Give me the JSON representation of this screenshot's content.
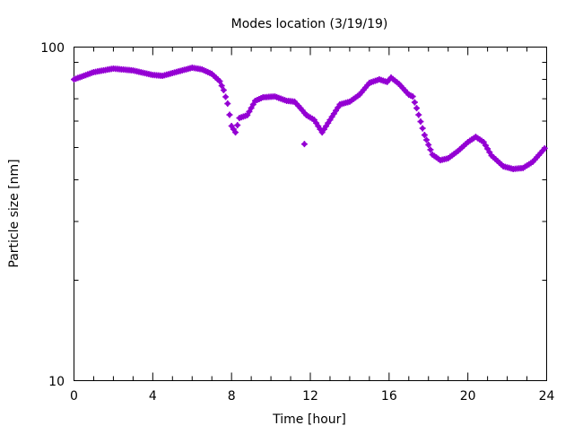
{
  "chart_data": {
    "type": "scatter",
    "title": "Modes location (3/19/19)",
    "xlabel": "Time [hour]",
    "ylabel": "Particle size [nm]",
    "xlim": [
      0,
      24
    ],
    "ylim": [
      10,
      100
    ],
    "yscale": "log",
    "xticks": [
      0,
      4,
      8,
      12,
      16,
      20,
      24
    ],
    "xtick_labels": [
      "0",
      "4",
      "8",
      "12",
      "16",
      "20",
      "24"
    ],
    "yticks": [
      10,
      100
    ],
    "ytick_labels": [
      "10",
      "100"
    ],
    "grid": false,
    "legend": "none",
    "series": [
      {
        "name": "mode",
        "color": "#9400d3",
        "x": [
          0,
          1,
          2,
          3,
          4,
          4.5,
          5,
          6,
          6.5,
          7,
          7.4,
          7.6,
          7.8,
          8,
          8.2,
          8.4,
          8.8,
          9.2,
          9.6,
          10.2,
          10.8,
          11.2,
          11.5,
          11.8,
          12.2,
          12.6,
          13,
          13.5,
          14,
          14.5,
          15,
          15.5,
          15.9,
          16.1,
          16.5,
          17,
          17.2,
          17.4,
          17.6,
          17.8,
          18.2,
          18.6,
          19,
          19.5,
          20,
          20.4,
          20.8,
          21.2,
          21.8,
          22.3,
          22.8,
          23.3,
          23.9
        ],
        "y": [
          80.0,
          84.1,
          86.2,
          85.1,
          82.5,
          82.0,
          83.6,
          86.7,
          85.7,
          83.1,
          79.0,
          74.3,
          67.7,
          58.0,
          55.5,
          61.3,
          62.5,
          69.0,
          70.7,
          71.1,
          69.0,
          68.6,
          65.6,
          62.5,
          60.5,
          55.5,
          60.5,
          67.3,
          68.6,
          72.0,
          78.1,
          80.0,
          78.6,
          81.0,
          77.6,
          72.0,
          71.1,
          65.6,
          59.8,
          54.5,
          47.6,
          45.8,
          46.4,
          48.8,
          51.9,
          53.8,
          51.9,
          47.3,
          43.9,
          43.1,
          43.4,
          45.3,
          49.7
        ],
        "outliers": {
          "x": [
            11.7
          ],
          "y": [
            51.2
          ]
        }
      }
    ]
  }
}
